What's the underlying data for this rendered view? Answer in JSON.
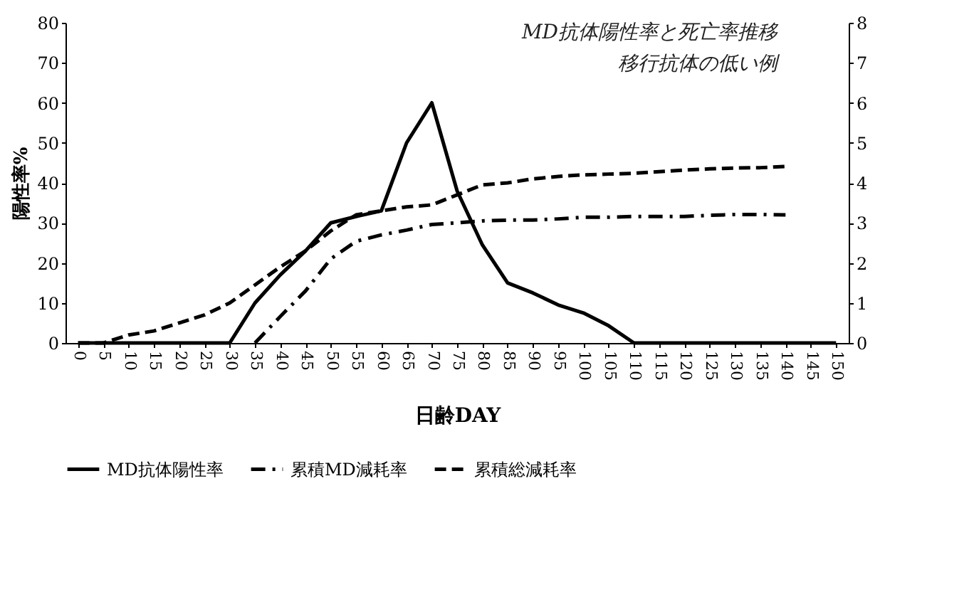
{
  "chart_data": {
    "type": "line",
    "title": "MD抗体陽性率と死亡率推移",
    "subtitle": "移行抗体の低い例",
    "xlabel": "日齢DAY",
    "ylabel": "陽性率%",
    "categories": [
      "0",
      "5",
      "10",
      "15",
      "20",
      "25",
      "30",
      "35",
      "40",
      "45",
      "50",
      "55",
      "60",
      "65",
      "70",
      "75",
      "80",
      "85",
      "90",
      "95",
      "100",
      "105",
      "110",
      "115",
      "120",
      "125",
      "130",
      "135",
      "140",
      "145",
      "150"
    ],
    "series": [
      {
        "name": "MD抗体陽性率",
        "color": "#000000",
        "line_style": "solid",
        "values": [
          0,
          0,
          0,
          0,
          0,
          0,
          0,
          10,
          17,
          23,
          30,
          31.6,
          33,
          50,
          60,
          38,
          24.5,
          15,
          12.5,
          9.5,
          7.5,
          4.3,
          0,
          0,
          0,
          0,
          0,
          0,
          0,
          0,
          0
        ]
      },
      {
        "name": "累積MD減耗率",
        "color": "#000000",
        "line_style": "dashdot",
        "axis": "y2",
        "values": [
          null,
          null,
          null,
          null,
          null,
          null,
          null,
          0,
          0.66,
          1.3,
          2.1,
          2.54,
          2.7,
          2.82,
          2.96,
          3.0,
          3.05,
          3.07,
          3.07,
          3.1,
          3.14,
          3.14,
          3.16,
          3.16,
          3.16,
          3.19,
          3.21,
          3.21,
          3.2,
          null,
          null
        ]
      },
      {
        "name": "累積総減耗率",
        "color": "#000000",
        "line_style": "dashed",
        "axis": "y2",
        "values": [
          0,
          0,
          0.2,
          0.3,
          0.5,
          0.7,
          1.0,
          1.45,
          1.9,
          2.3,
          2.8,
          3.2,
          3.3,
          3.4,
          3.45,
          3.7,
          3.95,
          4.0,
          4.1,
          4.16,
          4.2,
          4.22,
          4.24,
          4.28,
          4.32,
          4.35,
          4.37,
          4.38,
          4.41,
          null,
          null
        ]
      }
    ],
    "ylim": [
      0,
      80
    ],
    "yticks": [
      0,
      10,
      20,
      30,
      40,
      50,
      60,
      70,
      80
    ],
    "y2lim": [
      0,
      8
    ],
    "y2ticks": [
      0,
      1,
      2,
      3,
      4,
      5,
      6,
      7,
      8
    ],
    "grid": false,
    "legend": "bottom",
    "marker": "none"
  }
}
